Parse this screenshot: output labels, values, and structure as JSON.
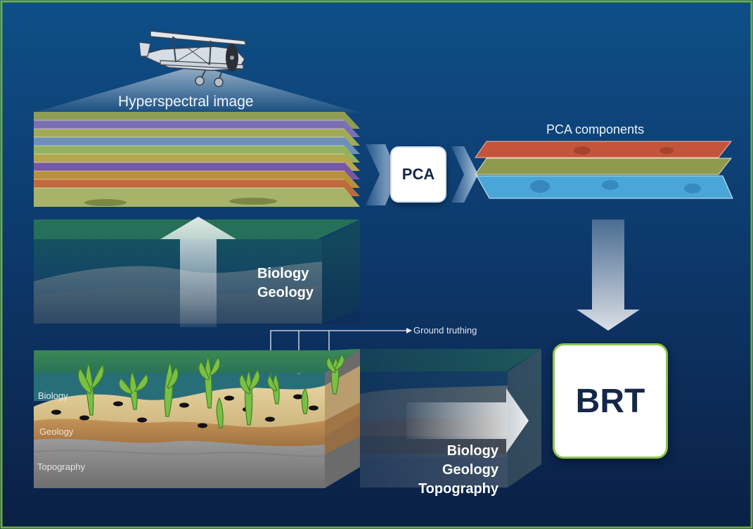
{
  "labels": {
    "hyperspectral": "Hyperspectral image",
    "pca_components": "PCA components",
    "pca": "PCA",
    "brt": "BRT",
    "biology_geology": [
      "Biology",
      "Geology"
    ],
    "ground_truthing": "Ground truthing",
    "layer_biology": "Biology",
    "layer_geology": "Geology",
    "layer_topography": "Topography",
    "biology_geology_topography": [
      "Biology",
      "Geology",
      "Topography"
    ]
  },
  "colors": {
    "background_top": "#0e4f88",
    "background_bottom": "#0b1f44",
    "border": "#6cae3e",
    "box_border": "#8fc44a",
    "box_text": "#15284a",
    "biology_layer": "#1f6d4e",
    "sand_layer": "#d9c28a",
    "geology_layer": "#b7874f",
    "topography_layer": "#8b8b8b",
    "pca_red": "#c4553a",
    "pca_olive": "#8d9a4f",
    "pca_blue": "#4aa6d6"
  },
  "icons": {
    "aircraft": "biplane-icon",
    "arrow": "arrow-icon",
    "seagrass": "seagrass-icon"
  }
}
